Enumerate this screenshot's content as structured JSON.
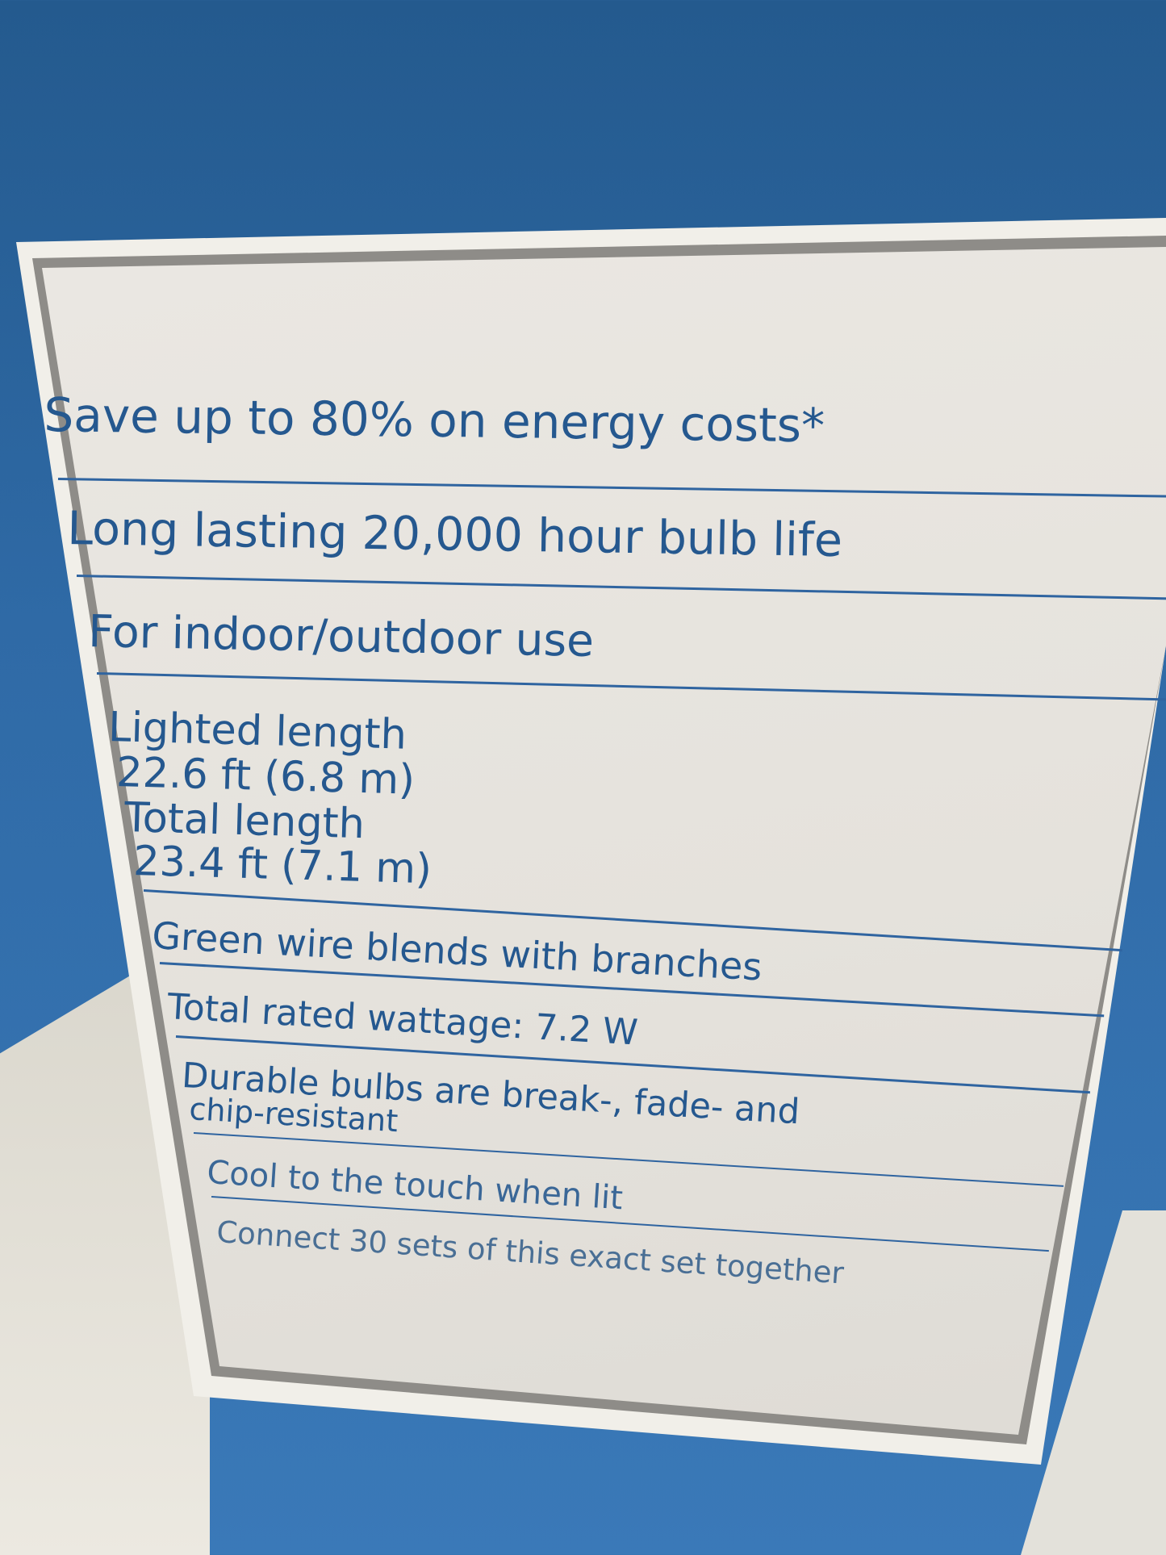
{
  "features": [
    "Save up to 80% on energy costs*",
    "Long lasting 20,000 hour bulb life",
    "For indoor/outdoor use"
  ],
  "lengths": {
    "lighted_label": "Lighted length",
    "lighted_value": "22.6 ft (6.8 m)",
    "total_label": "Total length",
    "total_value": "23.4 ft (7.1 m)"
  },
  "details": [
    "Green wire blends with branches",
    "Total rated wattage: 7.2 W",
    "Durable bulbs are break-, fade- and",
    "chip-resistant",
    "Cool to the touch when lit",
    "Connect 30 sets of this exact set together"
  ],
  "colors": {
    "box_blue": "#2f6aa6",
    "panel": "#e8e5df",
    "text": "#25588f"
  }
}
